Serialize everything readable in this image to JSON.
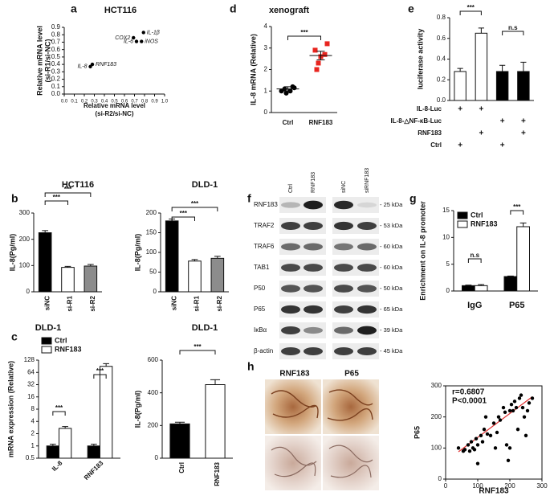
{
  "panel_letters": [
    "a",
    "b",
    "c",
    "d",
    "e",
    "f",
    "g",
    "h"
  ],
  "chart_data": [
    {
      "type": "scatter",
      "title": "HCT116",
      "xlabel": [
        "Relative mRNA level",
        "(si-R2/si-NC)"
      ],
      "ylabel": [
        "Relative mRNA level",
        "(si-R1/si-NC)"
      ],
      "x": [
        0.69,
        0.79,
        0.72,
        0.77,
        0.28,
        0.26
      ],
      "values": [
        0.76,
        0.83,
        0.71,
        0.71,
        0.4,
        0.37
      ],
      "point_labels": [
        "COX2",
        "IL-1β",
        "IL-6",
        "iNOS",
        "RNF183",
        "IL-8"
      ],
      "color": "#000000",
      "xlim": [
        0,
        1
      ],
      "ylim": [
        0,
        0.9
      ],
      "xticks": [
        {
          "value": 0,
          "label": "0.0"
        },
        {
          "value": 0.1,
          "label": "0.1"
        },
        {
          "value": 0.2,
          "label": "0.2"
        },
        {
          "value": 0.3,
          "label": "0.3"
        },
        {
          "value": 0.4,
          "label": "0.4"
        },
        {
          "value": 0.5,
          "label": "0.5"
        },
        {
          "value": 0.6,
          "label": "0.6"
        },
        {
          "value": 0.7,
          "label": "0.7"
        },
        {
          "value": 0.8,
          "label": "0.8"
        },
        {
          "value": 0.9,
          "label": "0.9"
        },
        {
          "value": 1,
          "label": "1.0"
        }
      ],
      "yticks": [
        {
          "value": 0,
          "label": "0.0"
        },
        {
          "value": 0.1,
          "label": "0.1"
        },
        {
          "value": 0.2,
          "label": "0.2"
        },
        {
          "value": 0.3,
          "label": "0.3"
        },
        {
          "value": 0.4,
          "label": "0.4"
        },
        {
          "value": 0.5,
          "label": "0.5"
        },
        {
          "value": 0.6,
          "label": "0.6"
        },
        {
          "value": 0.7,
          "label": "0.7"
        },
        {
          "value": 0.8,
          "label": "0.8"
        },
        {
          "value": 0.9,
          "label": "0.9"
        }
      ]
    },
    {
      "type": "dotplot",
      "title": "xenograft",
      "categories": [
        "Ctrl",
        "RNF183"
      ],
      "points": [
        [
          1.0,
          1.1,
          1.2,
          0.9,
          1.15,
          1.0
        ],
        [
          2.9,
          2.7,
          2.3,
          3.2,
          2.6,
          2.0
        ]
      ],
      "means": [
        1.1,
        2.65
      ],
      "errors": [
        0.1,
        0.2
      ],
      "colors": [
        "#000000",
        "#e8251f"
      ],
      "ylabel": "IL-8 mRNA (Relative)",
      "ylim": [
        0,
        4
      ],
      "yticks": [
        0,
        1,
        2,
        3,
        4
      ],
      "significance": [
        "***"
      ]
    },
    {
      "type": "bar",
      "values": [
        0.28,
        0.65,
        0.28,
        0.28
      ],
      "errors": [
        0.03,
        0.05,
        0.06,
        0.09
      ],
      "colors": [
        "#ffffff",
        "#ffffff",
        "#000000",
        "#000000"
      ],
      "ylabel": "luciferase activity",
      "ylim": [
        0,
        0.8
      ],
      "yticks": [
        {
          "value": 0,
          "label": "0.0"
        },
        {
          "value": 0.2,
          "label": "0.2"
        },
        {
          "value": 0.4,
          "label": "0.4"
        },
        {
          "value": 0.6,
          "label": "0.6"
        },
        {
          "value": 0.8,
          "label": "0.8"
        }
      ],
      "significance": [
        "***",
        "n.s"
      ],
      "conditions": {
        "rows": [
          "IL-8-Luc",
          "IL-8-△NF-κB-Luc",
          "RNF183",
          "Ctrl"
        ],
        "marks": [
          [
            "+",
            "+",
            null,
            null
          ],
          [
            null,
            null,
            "+",
            "+"
          ],
          [
            null,
            "+",
            null,
            "+"
          ],
          [
            "+",
            null,
            "+",
            null
          ]
        ]
      }
    },
    {
      "type": "bar",
      "title": "HCT116",
      "categories": [
        "siNC",
        "si-R1",
        "si-R2"
      ],
      "values": [
        225,
        93,
        98
      ],
      "errors": [
        8,
        4,
        6
      ],
      "colors": [
        "#000000",
        "#ffffff",
        "#8c8c8c"
      ],
      "ylabel": "IL-8(Pg/ml)",
      "ylim": [
        0,
        300
      ],
      "yticks": [
        0,
        100,
        200,
        300
      ],
      "significance": [
        "***",
        "***"
      ]
    },
    {
      "type": "bar",
      "title": "DLD-1",
      "categories": [
        "siNC",
        "si-R1",
        "si-R2"
      ],
      "values": [
        180,
        78,
        85
      ],
      "errors": [
        5,
        4,
        5
      ],
      "colors": [
        "#000000",
        "#ffffff",
        "#8c8c8c"
      ],
      "ylabel": "IL-8(Pg/ml)",
      "ylim": [
        0,
        200
      ],
      "yticks": [
        0,
        50,
        100,
        150,
        200
      ],
      "significance": [
        "***",
        "***"
      ]
    },
    {
      "type": "grouped_bar",
      "title": "DLD-1",
      "categories": [
        "IL-8",
        "RNF183"
      ],
      "series": [
        {
          "name": "Ctrl",
          "color": "#000000",
          "values": [
            1,
            1
          ],
          "errors": [
            0.1,
            0.1
          ]
        },
        {
          "name": "RNF183",
          "color": "#ffffff",
          "values": [
            2.7,
            90
          ],
          "errors": [
            0.3,
            15
          ]
        }
      ],
      "ylabel": "mRNA expression (Relative)",
      "ylim": [
        0.5,
        128
      ],
      "yticks": [
        0.5,
        1,
        2,
        4,
        8,
        16,
        32,
        64,
        128
      ],
      "log_base": 2,
      "significance": [
        "***",
        "***"
      ]
    },
    {
      "type": "bar",
      "title": "DLD-1",
      "categories": [
        "Ctrl",
        "RNF183"
      ],
      "values": [
        210,
        450
      ],
      "errors": [
        10,
        30
      ],
      "colors": [
        "#000000",
        "#ffffff"
      ],
      "ylabel": "IL-8(Pg/ml)",
      "ylim": [
        0,
        600
      ],
      "yticks": [
        0,
        200,
        400,
        600
      ],
      "significance": [
        "***"
      ]
    },
    {
      "type": "grouped_bar",
      "categories": [
        "IgG",
        "P65"
      ],
      "series": [
        {
          "name": "Ctrl",
          "color": "#000000",
          "values": [
            1.0,
            2.7
          ],
          "errors": [
            0.1,
            0.1
          ]
        },
        {
          "name": "RNF183",
          "color": "#ffffff",
          "values": [
            1.0,
            12.0
          ],
          "errors": [
            0.2,
            0.7
          ]
        }
      ],
      "ylabel": "Enrichment on IL-8 promoter",
      "ylim": [
        0,
        15
      ],
      "yticks": [
        0,
        5,
        10,
        15
      ],
      "significance": [
        "n.s",
        "***"
      ]
    },
    {
      "type": "scatter",
      "xlabel": "RNF183",
      "ylabel": "P65",
      "annotations": [
        "r=0.6807",
        "P<0.0001"
      ],
      "color": "#000000",
      "x": [
        40,
        55,
        60,
        70,
        75,
        80,
        85,
        90,
        95,
        100,
        100,
        110,
        115,
        120,
        125,
        130,
        140,
        150,
        155,
        160,
        165,
        170,
        180,
        185,
        190,
        195,
        200,
        200,
        205,
        210,
        215,
        220,
        225,
        230,
        240,
        245,
        250,
        255,
        260,
        270,
        235
      ],
      "values": [
        100,
        90,
        95,
        110,
        90,
        120,
        100,
        95,
        130,
        50,
        110,
        140,
        120,
        160,
        200,
        145,
        140,
        180,
        100,
        150,
        200,
        190,
        230,
        215,
        110,
        60,
        220,
        100,
        240,
        220,
        250,
        230,
        160,
        260,
        230,
        200,
        140,
        220,
        245,
        260,
        270
      ],
      "trendline": {
        "x": [
          40,
          270
        ],
        "y": [
          88,
          265
        ],
        "color": "#e03030"
      },
      "xlim": [
        0,
        300
      ],
      "ylim": [
        0,
        300
      ],
      "xticks": [
        0,
        100,
        200,
        300
      ],
      "yticks": [
        0,
        100,
        200,
        300
      ]
    }
  ],
  "blot": {
    "lanes": [
      "Ctrl",
      "RNF183",
      "siNC",
      "siRNF183"
    ],
    "rows": [
      {
        "protein": "RNF183",
        "size": "- 25 kDa"
      },
      {
        "protein": "TRAF2",
        "size": "- 53 kDa"
      },
      {
        "protein": "TRAF6",
        "size": "- 60 kDa"
      },
      {
        "protein": "TAB1",
        "size": "- 60 kDa"
      },
      {
        "protein": "P50",
        "size": "- 50 kDa"
      },
      {
        "protein": "P65",
        "size": "- 65 kDa"
      },
      {
        "protein": "IκBα",
        "size": "- 39 kDa"
      },
      {
        "protein": "β-actin",
        "size": "- 45 kDa"
      }
    ]
  },
  "histology": {
    "columns": [
      "RNF183",
      "P65"
    ]
  }
}
